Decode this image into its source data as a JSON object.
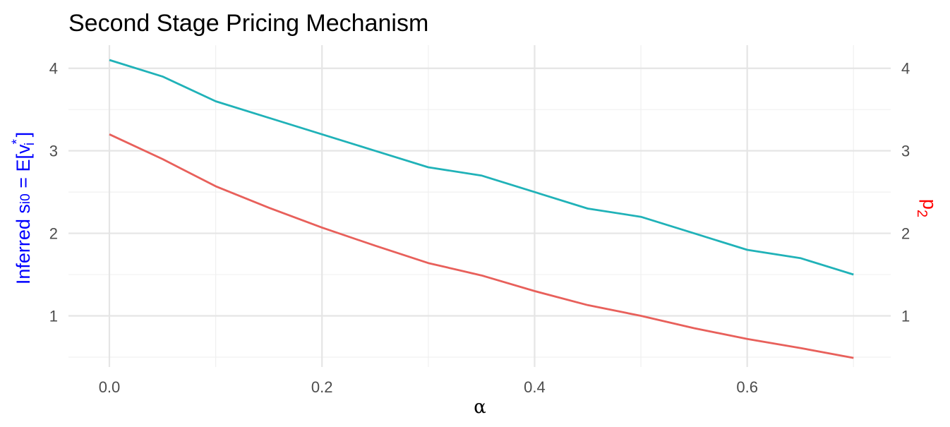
{
  "chart_data": {
    "type": "line",
    "title": "Second Stage Pricing Mechanism",
    "xlabel": "α",
    "ylabel_left": {
      "prefix": "Inferred s",
      "sub": "i0",
      "mid": " = E[v",
      "sup": "*",
      "sub2": "i",
      "suffix": " ]",
      "color": "#0000ff"
    },
    "ylabel_right": {
      "base": "p",
      "sub": "2",
      "color": "#ff0000"
    },
    "x": [
      0.0,
      0.05,
      0.1,
      0.15,
      0.2,
      0.25,
      0.3,
      0.35,
      0.4,
      0.45,
      0.5,
      0.55,
      0.6,
      0.65,
      0.7
    ],
    "series": [
      {
        "color": "#20b2b8",
        "values": [
          4.1,
          3.9,
          3.6,
          3.4,
          3.2,
          3.0,
          2.8,
          2.7,
          2.5,
          2.3,
          2.2,
          2.0,
          1.8,
          1.7,
          1.5
        ]
      },
      {
        "color": "#e8605b",
        "values": [
          3.2,
          2.9,
          2.57,
          2.31,
          2.07,
          1.85,
          1.64,
          1.49,
          1.3,
          1.13,
          1.0,
          0.85,
          0.72,
          0.61,
          0.49
        ]
      }
    ],
    "xlim": [
      -0.0385,
      0.735
    ],
    "ylim": [
      0.38,
      4.28
    ],
    "x_ticks": [
      0.0,
      0.2,
      0.4,
      0.6
    ],
    "x_tick_labels": [
      "0.0",
      "0.2",
      "0.4",
      "0.6"
    ],
    "x_minor": [
      0.1,
      0.3,
      0.5,
      0.7
    ],
    "y_ticks": [
      1,
      2,
      3,
      4
    ],
    "y_tick_labels": [
      "1",
      "2",
      "3",
      "4"
    ],
    "y_minor": [
      0.5,
      1.5,
      2.5,
      3.5
    ],
    "right_axis_tick_labels": [
      "1",
      "2",
      "3",
      "4"
    ],
    "grid": true
  }
}
